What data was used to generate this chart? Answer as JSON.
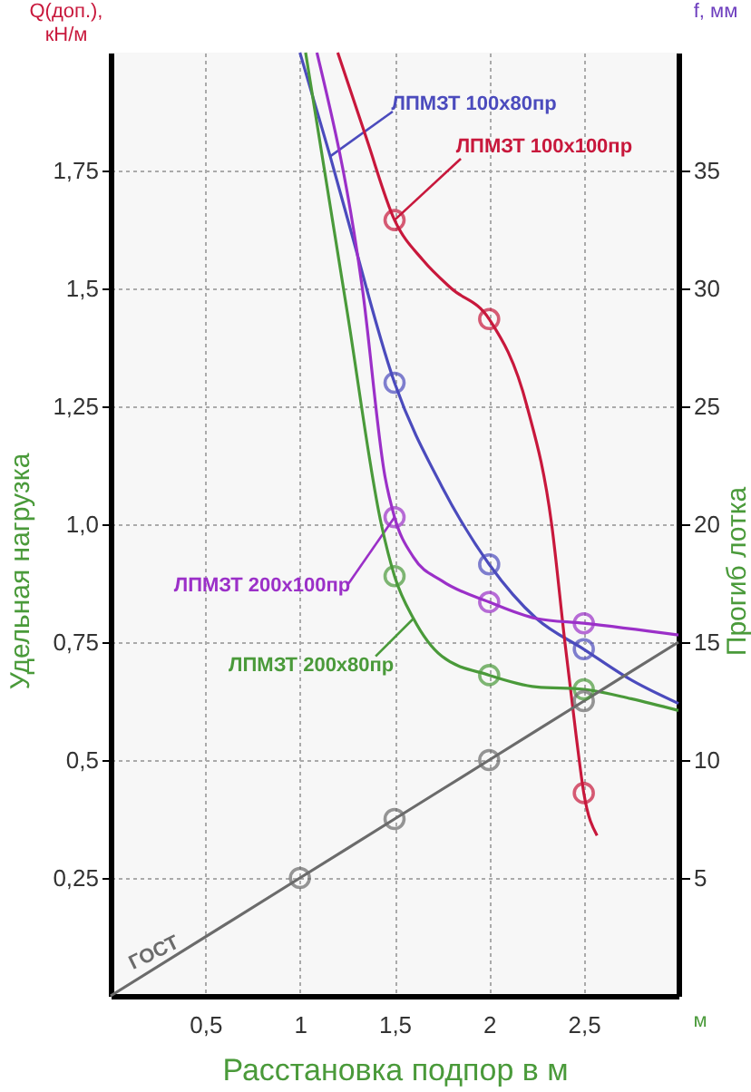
{
  "chart_data": {
    "type": "line",
    "xlabel": "Расстановка подпор в м",
    "ylabel": "Q(доп.), кН/м",
    "y2label": "f, мм",
    "annotations": [
      "Удельная нагрузка",
      "Прогиб лотка",
      "м"
    ],
    "xlim": [
      0,
      3
    ],
    "xticks": [
      {
        "value": 0.5,
        "label": "0,5"
      },
      1,
      {
        "value": 1.5,
        "label": "1,5"
      },
      2,
      {
        "value": 2.5,
        "label": "2,5"
      }
    ],
    "ylim": [
      0,
      2
    ],
    "yticks": [
      {
        "value": 0.25,
        "label": "0,25"
      },
      {
        "value": 0.5,
        "label": "0,5"
      },
      {
        "value": 0.75,
        "label": "0,75"
      },
      {
        "value": 1.0,
        "label": "1,0"
      },
      {
        "value": 1.25,
        "label": "1,25"
      },
      {
        "value": 1.5,
        "label": "1,5"
      },
      {
        "value": 1.75,
        "label": "1,75"
      }
    ],
    "y2lim": [
      0,
      40
    ],
    "y2ticks": [
      5,
      10,
      15,
      20,
      25,
      30,
      35
    ],
    "grid": true,
    "marker": "circle",
    "line_style": "solid",
    "series": [
      {
        "name": "ЛПМЗТ 100x80пр",
        "marker": "none",
        "color": "#4b4bbd",
        "x": [
          1.0,
          1.16,
          1.25,
          1.5,
          1.75,
          2,
          2.25,
          2.5,
          2.75,
          3
        ],
        "values": [
          2.0,
          1.78,
          1.65,
          1.3,
          1.08,
          0.915,
          0.8,
          0.735,
          0.67,
          0.62
        ]
      },
      {
        "name": "ЛПМЗТ 100x100пр",
        "marker": "none",
        "color": "#c8183c",
        "x": [
          1.2,
          1.35,
          1.5,
          1.65,
          1.8,
          2,
          2.2,
          2.33,
          2.4,
          2.46,
          2.5,
          2.57
        ],
        "values": [
          2.0,
          1.82,
          1.645,
          1.56,
          1.5,
          1.435,
          1.25,
          1.0,
          0.75,
          0.55,
          0.43,
          0.34
        ]
      },
      {
        "name": "ЛПМЗТ 200x100пр",
        "marker": "none",
        "color": "#9b30c8",
        "x": [
          1.09,
          1.33,
          1.45,
          1.5,
          1.6,
          1.75,
          2,
          2.25,
          2.5,
          3
        ],
        "values": [
          2.0,
          1.5,
          1.1,
          1.015,
          0.93,
          0.88,
          0.835,
          0.8,
          0.79,
          0.765
        ]
      },
      {
        "name": "ЛПМЗТ 200x80пр",
        "marker": "none",
        "color": "#4a9a3a",
        "x": [
          1.03,
          1.25,
          1.43,
          1.5,
          1.6,
          1.75,
          2,
          2.25,
          2.5,
          2.75,
          3
        ],
        "values": [
          2.0,
          1.45,
          1.0,
          0.89,
          0.8,
          0.72,
          0.68,
          0.655,
          0.65,
          0.63,
          0.605
        ]
      },
      {
        "name": "ГОСТ",
        "marker": "none",
        "color": "#6b6b6b",
        "x": [
          0,
          1,
          1.5,
          2,
          2.5,
          3
        ],
        "values": [
          0,
          0.25,
          0.375,
          0.5,
          0.625,
          0.75
        ]
      },
      {
        "type": "scatter",
        "color": "#4b4bbd",
        "x": [
          1.5,
          2,
          2.5
        ],
        "values": [
          1.3,
          0.915,
          0.735
        ]
      },
      {
        "type": "scatter",
        "color": "#c8183c",
        "x": [
          1.5,
          2,
          2.5
        ],
        "values": [
          1.645,
          1.435,
          0.43
        ]
      },
      {
        "type": "scatter",
        "color": "#9b30c8",
        "x": [
          1.5,
          2,
          2.5
        ],
        "values": [
          1.015,
          0.835,
          0.79
        ]
      },
      {
        "type": "scatter",
        "color": "#4a9a3a",
        "x": [
          1.5,
          2,
          2.5
        ],
        "values": [
          0.89,
          0.68,
          0.65
        ]
      },
      {
        "type": "scatter",
        "color": "#6b6b6b",
        "x": [
          1,
          1.5,
          2,
          2.5
        ],
        "values": [
          0.25,
          0.375,
          0.5,
          0.625
        ]
      }
    ]
  }
}
